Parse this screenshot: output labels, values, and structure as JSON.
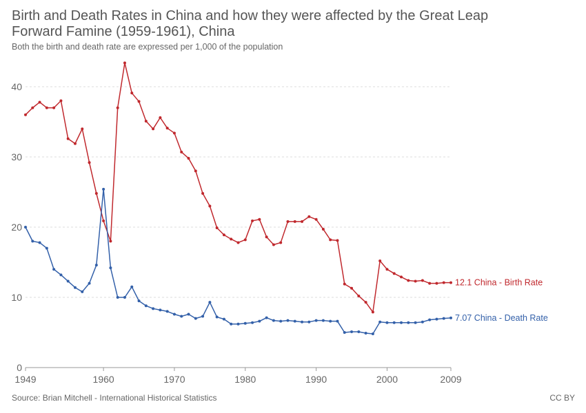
{
  "header": {
    "title": "Birth and Death Rates in China and how they were affected by the Great Leap Forward Famine (1959-1961), China",
    "subtitle": "Both the birth and death rate are expressed per 1,000 of the population"
  },
  "footer": {
    "source": "Source: Brian Mitchell - International Historical Statistics",
    "license": "CC BY"
  },
  "chart_data": {
    "type": "line",
    "title": "Birth and Death Rates in China and how they were affected by the Great Leap Forward Famine (1959-1961), China",
    "subtitle": "Both the birth and death rate are expressed per 1,000 of the population",
    "xlabel": "",
    "ylabel": "",
    "xlim": [
      1949,
      2009
    ],
    "ylim": [
      0,
      45
    ],
    "x_ticks": [
      "1949",
      "1960",
      "1970",
      "1980",
      "1990",
      "2000",
      "2009"
    ],
    "y_ticks": [
      "0",
      "10",
      "20",
      "30",
      "40"
    ],
    "grid": "horizontal dashed",
    "x": [
      1949,
      1950,
      1951,
      1952,
      1953,
      1954,
      1955,
      1956,
      1957,
      1958,
      1959,
      1960,
      1961,
      1962,
      1963,
      1964,
      1965,
      1966,
      1967,
      1968,
      1969,
      1970,
      1971,
      1972,
      1973,
      1974,
      1975,
      1976,
      1977,
      1978,
      1979,
      1980,
      1981,
      1982,
      1983,
      1984,
      1985,
      1986,
      1987,
      1988,
      1989,
      1990,
      1991,
      1992,
      1993,
      1994,
      1995,
      1996,
      1997,
      1998,
      1999,
      2000,
      2001,
      2002,
      2003,
      2004,
      2005,
      2006,
      2007,
      2008,
      2009
    ],
    "series": [
      {
        "name": "China - Birth Rate",
        "end_label": "12.1 China - Birth Rate",
        "color": "#c0282d",
        "values": [
          36.0,
          37.0,
          37.8,
          37.0,
          37.0,
          38.0,
          32.6,
          31.9,
          34.0,
          29.2,
          24.8,
          20.9,
          18.0,
          37.0,
          43.4,
          39.1,
          37.9,
          35.1,
          34.0,
          35.6,
          34.1,
          33.4,
          30.7,
          29.8,
          28.0,
          24.8,
          23.0,
          19.9,
          18.9,
          18.3,
          17.8,
          18.2,
          20.9,
          21.1,
          18.6,
          17.5,
          17.8,
          20.8,
          20.8,
          20.8,
          21.5,
          21.1,
          19.7,
          18.2,
          18.1,
          11.9,
          11.3,
          10.2,
          9.3,
          7.9,
          15.2,
          14.0,
          13.4,
          12.9,
          12.4,
          12.3,
          12.4,
          12.0,
          12.0,
          12.1,
          12.1
        ]
      },
      {
        "name": "China - Death Rate",
        "end_label": "7.07 China - Death Rate",
        "color": "#3360a9",
        "values": [
          20.0,
          18.0,
          17.8,
          17.0,
          14.0,
          13.2,
          12.3,
          11.4,
          10.8,
          12.0,
          14.6,
          25.4,
          14.2,
          10.0,
          10.0,
          11.5,
          9.5,
          8.8,
          8.4,
          8.2,
          8.0,
          7.6,
          7.3,
          7.6,
          7.0,
          7.3,
          9.3,
          7.2,
          6.9,
          6.2,
          6.2,
          6.3,
          6.4,
          6.6,
          7.1,
          6.7,
          6.6,
          6.7,
          6.6,
          6.5,
          6.5,
          6.7,
          6.7,
          6.6,
          6.6,
          5.0,
          5.1,
          5.1,
          4.9,
          4.8,
          6.5,
          6.4,
          6.4,
          6.4,
          6.4,
          6.4,
          6.5,
          6.8,
          6.9,
          7.0,
          7.07
        ]
      }
    ]
  }
}
